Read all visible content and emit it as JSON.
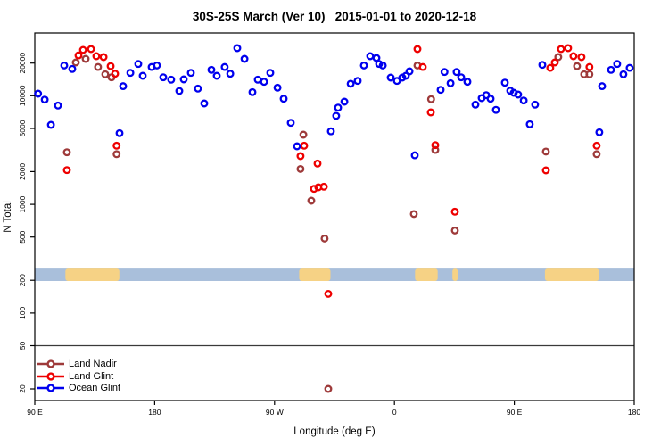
{
  "chart_data": {
    "type": "scatter",
    "title": "30S-25S March (Ver 10)   2015-01-01 to 2020-12-18",
    "xlabel": "Longitude (deg E)",
    "ylabel": "N Total",
    "x_axis": {
      "range": [
        90,
        540
      ],
      "ticks": [
        90,
        180,
        270,
        360,
        450,
        540
      ],
      "tick_labels": [
        "90 E",
        "180",
        "90 W",
        "0",
        "90 E",
        "180"
      ]
    },
    "y_axis": {
      "scale": "log",
      "range": [
        15,
        38000
      ],
      "ticks": [
        20,
        50,
        100,
        200,
        500,
        1000,
        2000,
        5000,
        10000,
        20000
      ],
      "tick_labels": [
        "20",
        "50",
        "100",
        "200",
        "500",
        "1000",
        "2000",
        "5000",
        "10000",
        "20000"
      ]
    },
    "grid": "off",
    "legend_position": "bottom-left",
    "reference_line_y": 50,
    "map_band": {
      "description": "land-ocean strip along longitude",
      "y_top_value": 256,
      "y_bottom_value": 197,
      "ocean_color": "#a9bfdb",
      "land_color": "#f6d285",
      "land_segments_lon": [
        [
          113,
          153.5
        ],
        [
          288.5,
          312
        ],
        [
          375.5,
          392.5
        ],
        [
          403.5,
          407.5
        ],
        [
          473,
          513.5
        ]
      ]
    },
    "series": [
      {
        "name": "Land Nadir",
        "color": "#9e3a3a",
        "points": [
          [
            120.8,
            20250
          ],
          [
            128.2,
            21850
          ],
          [
            137.5,
            18400
          ],
          [
            142.9,
            15740
          ],
          [
            147.6,
            14770
          ],
          [
            114.1,
            3015
          ],
          [
            151.4,
            2900
          ],
          [
            291.6,
            4380
          ],
          [
            289.5,
            2120
          ],
          [
            297.6,
            1080
          ],
          [
            307.6,
            485
          ],
          [
            310.3,
            20
          ],
          [
            377.3,
            19000
          ],
          [
            387.5,
            9300
          ],
          [
            390.7,
            3170
          ],
          [
            374.6,
            815
          ],
          [
            405.4,
            575
          ],
          [
            483.0,
            22700
          ],
          [
            497.1,
            18750
          ],
          [
            502.4,
            15740
          ],
          [
            506.4,
            15740
          ],
          [
            473.7,
            3060
          ],
          [
            511.8,
            2900
          ]
        ]
      },
      {
        "name": "Land Glint",
        "color": "#ee0000",
        "points": [
          [
            122.8,
            23500
          ],
          [
            126.2,
            26400
          ],
          [
            132.2,
            26900
          ],
          [
            136.2,
            23100
          ],
          [
            141.6,
            22700
          ],
          [
            146.9,
            18750
          ],
          [
            150.3,
            15920
          ],
          [
            114.1,
            2065
          ],
          [
            151.4,
            3470
          ],
          [
            292.2,
            3470
          ],
          [
            289.5,
            2780
          ],
          [
            302.3,
            2375
          ],
          [
            299.6,
            1390
          ],
          [
            302.9,
            1435
          ],
          [
            307.0,
            1455
          ],
          [
            310.3,
            150
          ],
          [
            377.3,
            26900
          ],
          [
            381.3,
            18400
          ],
          [
            387.3,
            7030
          ],
          [
            390.7,
            3510
          ],
          [
            405.4,
            857
          ],
          [
            477.0,
            18060
          ],
          [
            480.4,
            20250
          ],
          [
            485.0,
            26900
          ],
          [
            490.4,
            27400
          ],
          [
            494.4,
            23100
          ],
          [
            500.4,
            22700
          ],
          [
            506.4,
            18400
          ],
          [
            473.7,
            2055
          ],
          [
            511.8,
            3470
          ]
        ]
      },
      {
        "name": "Ocean Glint",
        "color": "#0000ee",
        "points": [
          [
            92.5,
            10450
          ],
          [
            97.4,
            9200
          ],
          [
            102.1,
            5390
          ],
          [
            107.4,
            8130
          ],
          [
            112.1,
            19000
          ],
          [
            118.1,
            17630
          ],
          [
            153.6,
            4520
          ],
          [
            156.3,
            12240
          ],
          [
            161.7,
            16220
          ],
          [
            167.7,
            19600
          ],
          [
            171.0,
            15240
          ],
          [
            177.7,
            18400
          ],
          [
            181.7,
            19000
          ],
          [
            186.4,
            14770
          ],
          [
            192.4,
            14050
          ],
          [
            198.5,
            11060
          ],
          [
            201.8,
            14130
          ],
          [
            207.2,
            16220
          ],
          [
            212.5,
            11640
          ],
          [
            217.2,
            8490
          ],
          [
            222.6,
            17300
          ],
          [
            226.6,
            15240
          ],
          [
            232.6,
            18400
          ],
          [
            236.7,
            15920
          ],
          [
            242.0,
            27400
          ],
          [
            247.4,
            21850
          ],
          [
            253.4,
            10790
          ],
          [
            257.4,
            14050
          ],
          [
            262.1,
            13430
          ],
          [
            266.8,
            16220
          ],
          [
            272.2,
            11860
          ],
          [
            276.8,
            9380
          ],
          [
            282.2,
            5630
          ],
          [
            286.9,
            3425
          ],
          [
            312.3,
            4700
          ],
          [
            316.3,
            6520
          ],
          [
            317.7,
            7760
          ],
          [
            322.4,
            8810
          ],
          [
            327.1,
            12880
          ],
          [
            332.4,
            13680
          ],
          [
            337.1,
            19000
          ],
          [
            341.8,
            23100
          ],
          [
            346.5,
            22250
          ],
          [
            348.5,
            19600
          ],
          [
            351.2,
            19000
          ],
          [
            357.2,
            14680
          ],
          [
            361.9,
            13680
          ],
          [
            365.9,
            14680
          ],
          [
            368.6,
            15240
          ],
          [
            371.3,
            16750
          ],
          [
            375.3,
            2830
          ],
          [
            394.7,
            11330
          ],
          [
            397.6,
            16530
          ],
          [
            402.1,
            13030
          ],
          [
            406.7,
            16530
          ],
          [
            410.1,
            14770
          ],
          [
            414.8,
            13430
          ],
          [
            420.8,
            8280
          ],
          [
            425.5,
            9510
          ],
          [
            428.9,
            10120
          ],
          [
            432.2,
            9380
          ],
          [
            436.2,
            7400
          ],
          [
            442.9,
            13180
          ],
          [
            446.9,
            11120
          ],
          [
            449.6,
            10640
          ],
          [
            452.9,
            10260
          ],
          [
            457.0,
            9030
          ],
          [
            461.6,
            5460
          ],
          [
            465.6,
            8280
          ],
          [
            471.0,
            19250
          ],
          [
            513.8,
            4610
          ],
          [
            515.9,
            12240
          ],
          [
            522.6,
            17300
          ],
          [
            527.2,
            19600
          ],
          [
            531.9,
            15740
          ],
          [
            536.6,
            18060
          ]
        ]
      }
    ]
  }
}
